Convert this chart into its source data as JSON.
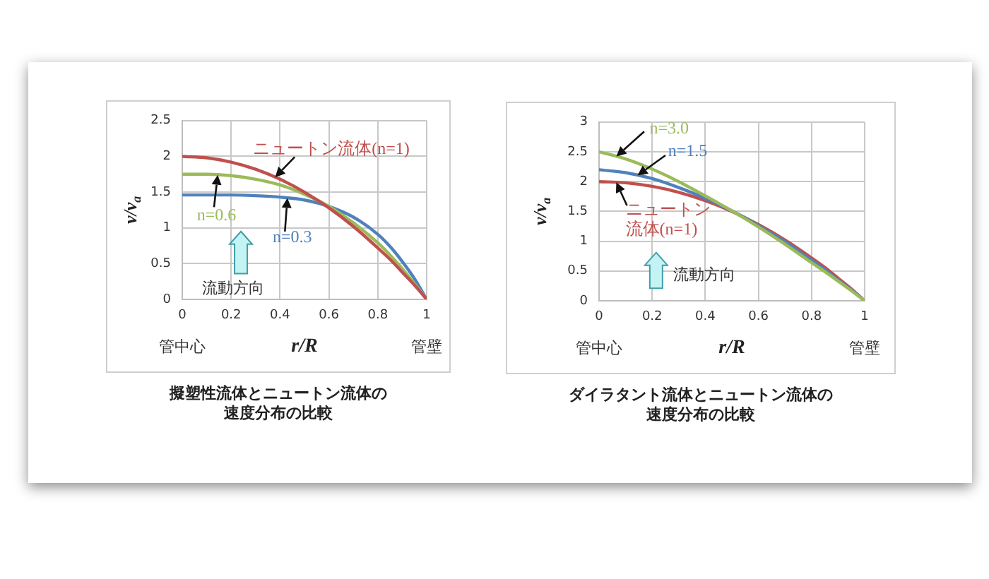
{
  "chart_data": [
    {
      "type": "line",
      "title": "擬塑性流体とニュートン流体の速度分布の比較",
      "xlabel": "r/R",
      "ylabel": "v/v$_{a}$",
      "x": [
        0,
        0.1,
        0.2,
        0.3,
        0.4,
        0.5,
        0.6,
        0.7,
        0.8,
        0.85,
        0.9,
        0.95,
        1
      ],
      "series": [
        {
          "name": "ニュートン流体(n=1)",
          "color": "#c0504d",
          "values": [
            2,
            1.98,
            1.92,
            1.82,
            1.68,
            1.5,
            1.28,
            1.02,
            0.72,
            0.56,
            0.38,
            0.2,
            0
          ]
        },
        {
          "name": "n=0.6",
          "color": "#9bbb59",
          "values": [
            1.75,
            1.75,
            1.73,
            1.68,
            1.6,
            1.47,
            1.3,
            1.07,
            0.79,
            0.62,
            0.43,
            0.22,
            0
          ]
        },
        {
          "name": "n=0.3",
          "color": "#4f81bd",
          "values": [
            1.46,
            1.46,
            1.46,
            1.45,
            1.43,
            1.39,
            1.3,
            1.15,
            0.91,
            0.74,
            0.53,
            0.29,
            0
          ]
        }
      ],
      "xlim": [
        0,
        1
      ],
      "xticks": [
        0,
        0.2,
        0.4,
        0.6,
        0.8,
        1
      ],
      "ylim": [
        0,
        2.5
      ],
      "yticks": [
        0,
        0.5,
        1,
        1.5,
        2,
        2.5
      ],
      "grid": true,
      "marker": "none",
      "annotations": [
        "管中心",
        "管壁",
        "流動方向"
      ]
    },
    {
      "type": "line",
      "title": "ダイラタント流体とニュートン流体の速度分布の比較",
      "xlabel": "r/R",
      "ylabel": "v/v$_{a}$",
      "x": [
        0,
        0.1,
        0.2,
        0.3,
        0.4,
        0.5,
        0.6,
        0.7,
        0.8,
        0.85,
        0.9,
        0.95,
        1
      ],
      "series": [
        {
          "name": "n=3.0",
          "color": "#9bbb59",
          "values": [
            2.5,
            2.38,
            2.21,
            2,
            1.76,
            1.51,
            1.24,
            0.95,
            0.64,
            0.49,
            0.33,
            0.17,
            0
          ]
        },
        {
          "name": "n=1.5",
          "color": "#4f81bd",
          "values": [
            2.2,
            2.15,
            2.05,
            1.9,
            1.72,
            1.51,
            1.26,
            0.99,
            0.68,
            0.52,
            0.35,
            0.18,
            0
          ]
        },
        {
          "name": "ニュートン流体(n=1)",
          "color": "#c0504d",
          "values": [
            2,
            1.98,
            1.92,
            1.82,
            1.68,
            1.5,
            1.28,
            1.02,
            0.72,
            0.56,
            0.38,
            0.2,
            0
          ]
        }
      ],
      "xlim": [
        0,
        1
      ],
      "xticks": [
        0,
        0.2,
        0.4,
        0.6,
        0.8,
        1
      ],
      "ylim": [
        0,
        3
      ],
      "yticks": [
        0,
        0.5,
        1,
        1.5,
        2,
        2.5,
        3
      ],
      "grid": true,
      "marker": "none",
      "annotations": [
        "管中心",
        "管壁",
        "流動方向"
      ]
    }
  ]
}
